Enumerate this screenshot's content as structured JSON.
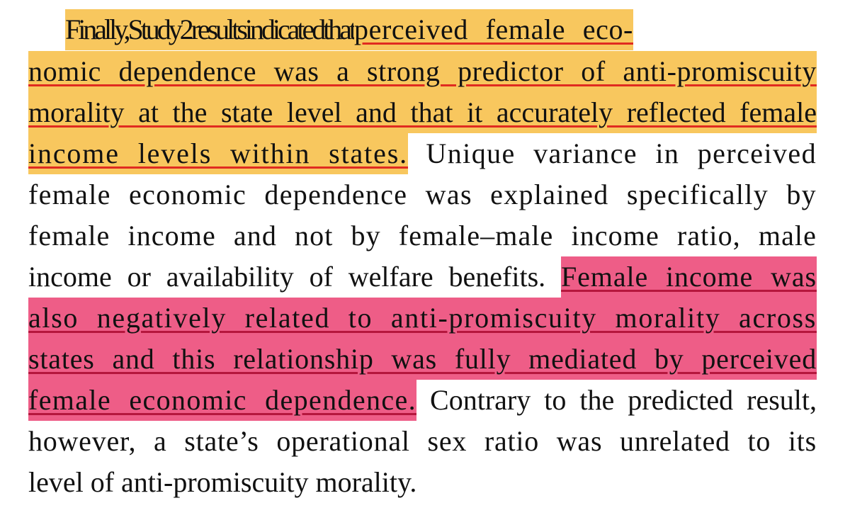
{
  "paragraph": {
    "line1": {
      "lead": "Finally, Study 2 results indicated that ",
      "hl": "perceived female eco-"
    },
    "line2": {
      "hl": "nomic dependence was a strong predictor of anti-promiscuity"
    },
    "line3": {
      "hl": "morality at the state level and that it accurately reflected female"
    },
    "line4": {
      "hl": "income levels within states.",
      "rest": " Unique variance in perceived"
    },
    "line5": {
      "text": "female economic dependence was explained specifically by"
    },
    "line6": {
      "text": "female income and not by female–male income ratio, male"
    },
    "line7": {
      "text": "income or availability of welfare benefits. ",
      "hl": "Female income was"
    },
    "line8": {
      "hl": "also negatively related to anti-promiscuity morality across"
    },
    "line9": {
      "hl": "states and this relationship was fully mediated by perceived"
    },
    "line10": {
      "hl": "female economic dependence.",
      "rest": " Contrary to the predicted result,"
    },
    "line11": {
      "text": "however, a state’s operational sex ratio was unrelated to its"
    },
    "line12": {
      "text": "level of anti-promiscuity morality."
    }
  },
  "colors": {
    "highlight_yellow": "#f8c75e",
    "highlight_pink": "#ee5d87",
    "underline_red": "#e02b20"
  }
}
